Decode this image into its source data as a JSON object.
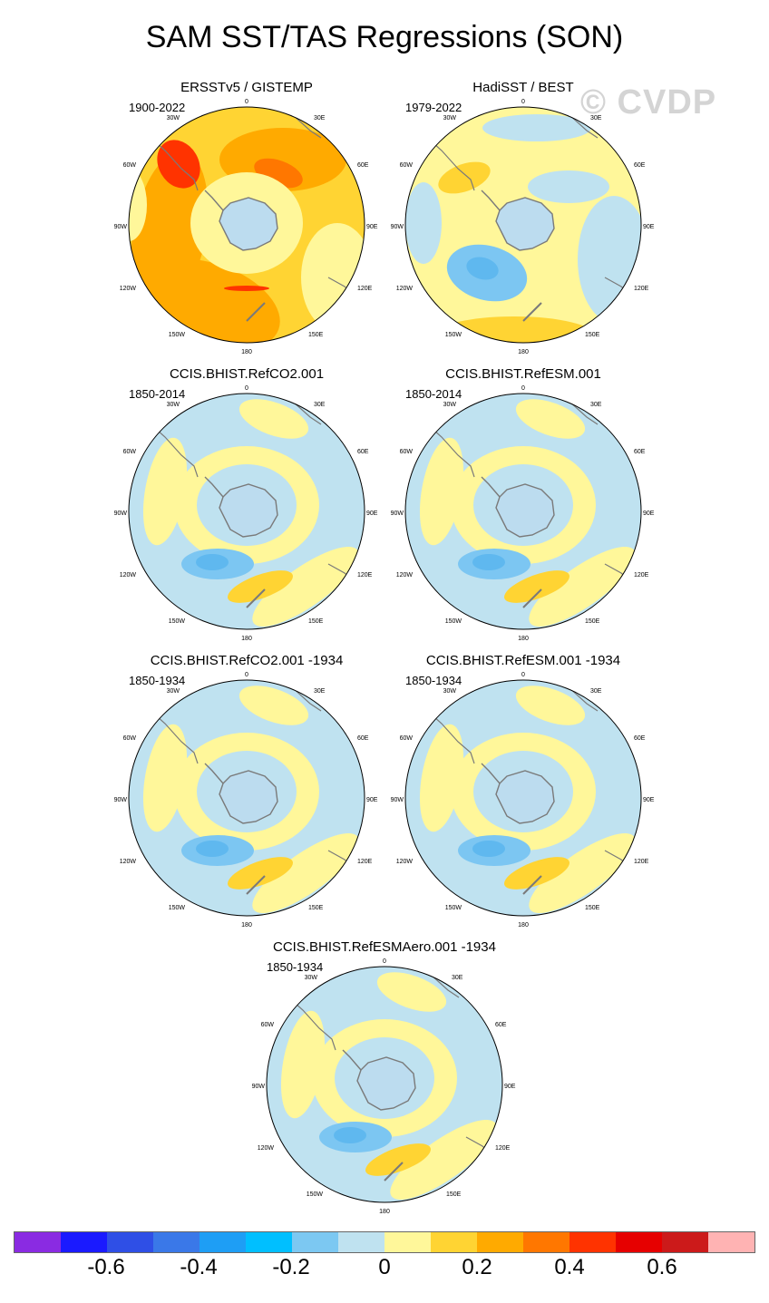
{
  "title": "SAM SST/TAS Regressions (SON)",
  "watermark": "© CVDP",
  "colors": {
    "ocean_zero": "#bfe2f0",
    "land_ant": "#bcdcef",
    "coast": "#7a7a7a",
    "pos1": "#fff79a",
    "pos2": "#ffd433",
    "pos3": "#ffaa00",
    "pos4": "#ff7700",
    "pos5": "#ff3300",
    "neg1": "#7cc6f2",
    "neg2": "#29b3f6"
  },
  "axis_labels": {
    "top": "0",
    "upper_left": "30W",
    "upper_right": "30E",
    "left_high": "60W",
    "right_high": "60E",
    "left": "90W",
    "right": "90E",
    "left_low": "120W",
    "right_low": "120E",
    "bottom_left": "150W",
    "bottom_right": "150E",
    "bottom": "180"
  },
  "panels": [
    {
      "title": "ERSSTv5 / GISTEMP",
      "period": "1900-2022",
      "pattern": "obs1"
    },
    {
      "title": "HadiSST / BEST",
      "period": "1979-2022",
      "pattern": "obs2"
    },
    {
      "title": "CCIS.BHIST.RefCO2.001",
      "period": "1850-2014",
      "pattern": "model"
    },
    {
      "title": "CCIS.BHIST.RefESM.001",
      "period": "1850-2014",
      "pattern": "model"
    },
    {
      "title": "CCIS.BHIST.RefCO2.001 -1934",
      "period": "1850-1934",
      "pattern": "model"
    },
    {
      "title": "CCIS.BHIST.RefESM.001 -1934",
      "period": "1850-1934",
      "pattern": "model"
    },
    {
      "title": "CCIS.BHIST.RefESMAero.001 -1934",
      "period": "1850-1934",
      "pattern": "model"
    }
  ],
  "colorbar": {
    "colors": [
      "#8a2be2",
      "#1a1aff",
      "#2f4fe6",
      "#3a78e8",
      "#1e9ef5",
      "#00bfff",
      "#7cc8f2",
      "#bfe2f0",
      "#fff79a",
      "#ffd433",
      "#ffaa00",
      "#ff7700",
      "#ff3300",
      "#e60000",
      "#cc1a1a",
      "#ffb3b3"
    ],
    "labels": [
      "-0.6",
      "-0.4",
      "-0.2",
      "0",
      "0.2",
      "0.4",
      "0.6"
    ]
  }
}
